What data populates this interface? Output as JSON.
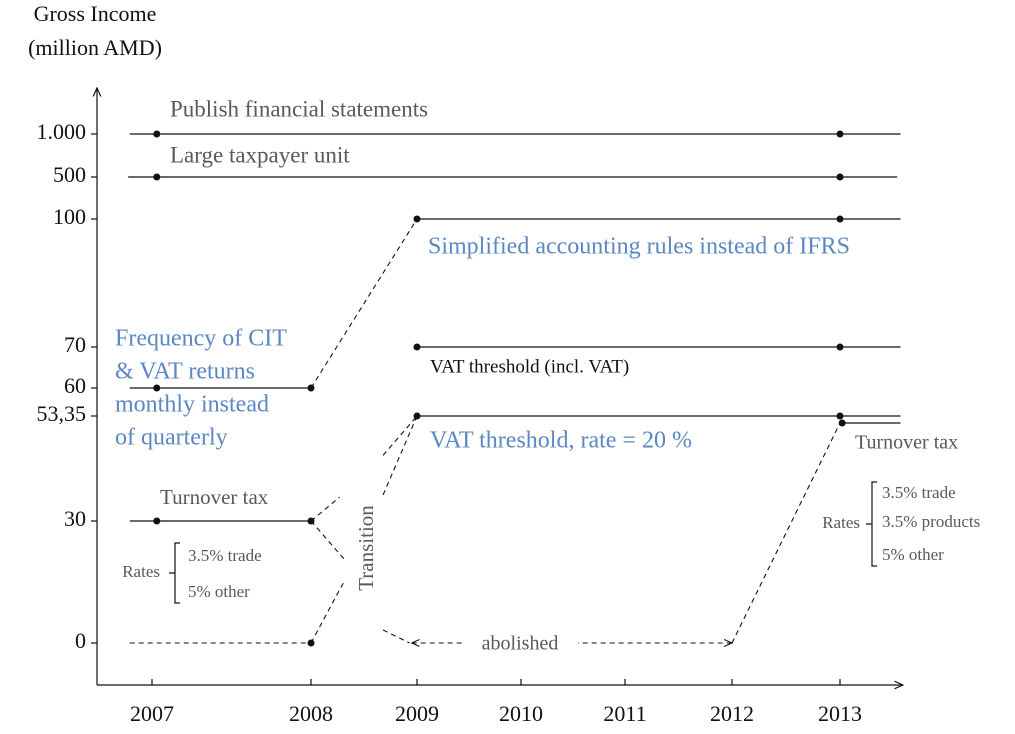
{
  "chart_data": {
    "type": "line",
    "ylabel_lines": [
      "Gross Income",
      "(million AMD)"
    ],
    "xticks": [
      2007,
      2008,
      2009,
      2010,
      2011,
      2012,
      2013
    ],
    "yticks": [
      0,
      30,
      {
        "value": 53.35,
        "label": "53,35"
      },
      60,
      70,
      100,
      500,
      {
        "value": 1000,
        "label": "1.000"
      }
    ],
    "segments": [
      {
        "x": [
          2006.86,
          2013.56
        ],
        "values": [
          1000,
          1000
        ],
        "style": "solid"
      },
      {
        "x": [
          2006.85,
          2013.53
        ],
        "values": [
          500,
          500
        ],
        "style": "solid"
      },
      {
        "x": [
          2009,
          2013.56
        ],
        "values": [
          100,
          100
        ],
        "style": "solid"
      },
      {
        "x": [
          2009,
          2013.56
        ],
        "values": [
          70,
          70
        ],
        "style": "solid"
      },
      {
        "x": [
          2006.86,
          2008
        ],
        "values": [
          60,
          60
        ],
        "style": "solid"
      },
      {
        "x": [
          2009,
          2013.56
        ],
        "values": [
          53.35,
          53.35
        ],
        "style": "solid"
      },
      {
        "x": [
          2013.02,
          2013.56
        ],
        "values": [
          51.8,
          51.8
        ],
        "style": "solid"
      },
      {
        "x": [
          2006.86,
          2008
        ],
        "values": [
          30,
          30
        ],
        "style": "solid"
      },
      {
        "x": [
          2006.86,
          2008
        ],
        "values": [
          0,
          0
        ],
        "style": "dashed"
      },
      {
        "x": [
          2008,
          2009
        ],
        "values": [
          60,
          100
        ],
        "style": "dashed"
      },
      {
        "x": [
          2008,
          2008.27
        ],
        "values": [
          30,
          35.3
        ],
        "style": "dashed"
      },
      {
        "x": [
          2008,
          2008.32
        ],
        "values": [
          30,
          20.4
        ],
        "style": "dashed"
      },
      {
        "x": [
          2008,
          2008.32
        ],
        "values": [
          0,
          15.5
        ],
        "style": "dashed"
      },
      {
        "x": [
          2008.68,
          2009
        ],
        "values": [
          44.6,
          53.35
        ],
        "style": "dashed"
      },
      {
        "x": [
          2008.68,
          2009
        ],
        "values": [
          35.8,
          53.35
        ],
        "style": "dashed"
      },
      {
        "x": [
          2008.68,
          2008.93
        ],
        "values": [
          3.2,
          0
        ],
        "style": "dashed"
      },
      {
        "x": [
          2008.95,
          2012
        ],
        "values": [
          0,
          0
        ],
        "style": "arrow"
      },
      {
        "x": [
          2012,
          2013
        ],
        "values": [
          0,
          51.8
        ],
        "style": "dashed"
      }
    ],
    "points": {
      "x": [
        2007.03,
        2013,
        2007.03,
        2013,
        2009,
        2013,
        2009,
        2013,
        2007.03,
        2008,
        2009,
        2013,
        2013.02,
        2007.03,
        2008,
        2008
      ],
      "values": [
        1000,
        1000,
        500,
        500,
        100,
        100,
        70,
        70,
        60,
        60,
        53.35,
        53.35,
        51.8,
        30,
        30,
        0
      ]
    },
    "annotations": [
      {
        "lines": [
          "Publish financial statements"
        ],
        "color": "#595959"
      },
      {
        "lines": [
          "Large taxpayer unit"
        ],
        "color": "#595959"
      },
      {
        "lines": [
          "Simplified accounting rules instead of IFRS"
        ],
        "color": "#5b87c2"
      },
      {
        "lines": [
          "Frequency of CIT",
          "& VAT returns",
          "monthly instead",
          "of quarterly"
        ],
        "color": "#5b87c2"
      },
      {
        "lines": [
          "VAT threshold (incl. VAT)"
        ],
        "color": "#111111"
      },
      {
        "lines": [
          "VAT threshold, rate = 20 %"
        ],
        "color": "#5b87c2"
      },
      {
        "lines": [
          "Turnover tax"
        ],
        "color": "#595959"
      },
      {
        "lines": [
          "Turnover tax"
        ],
        "color": "#595959"
      },
      {
        "lines": [
          "Transition"
        ],
        "color": "#595959"
      },
      {
        "lines": [
          "abolished"
        ],
        "color": "#595959"
      }
    ],
    "rate_groups": [
      {
        "label": "Rates",
        "items": [
          "3.5% trade",
          "5% other"
        ]
      },
      {
        "label": "Rates",
        "items": [
          "3.5% trade",
          "3.5% products",
          "5% other"
        ]
      }
    ]
  }
}
